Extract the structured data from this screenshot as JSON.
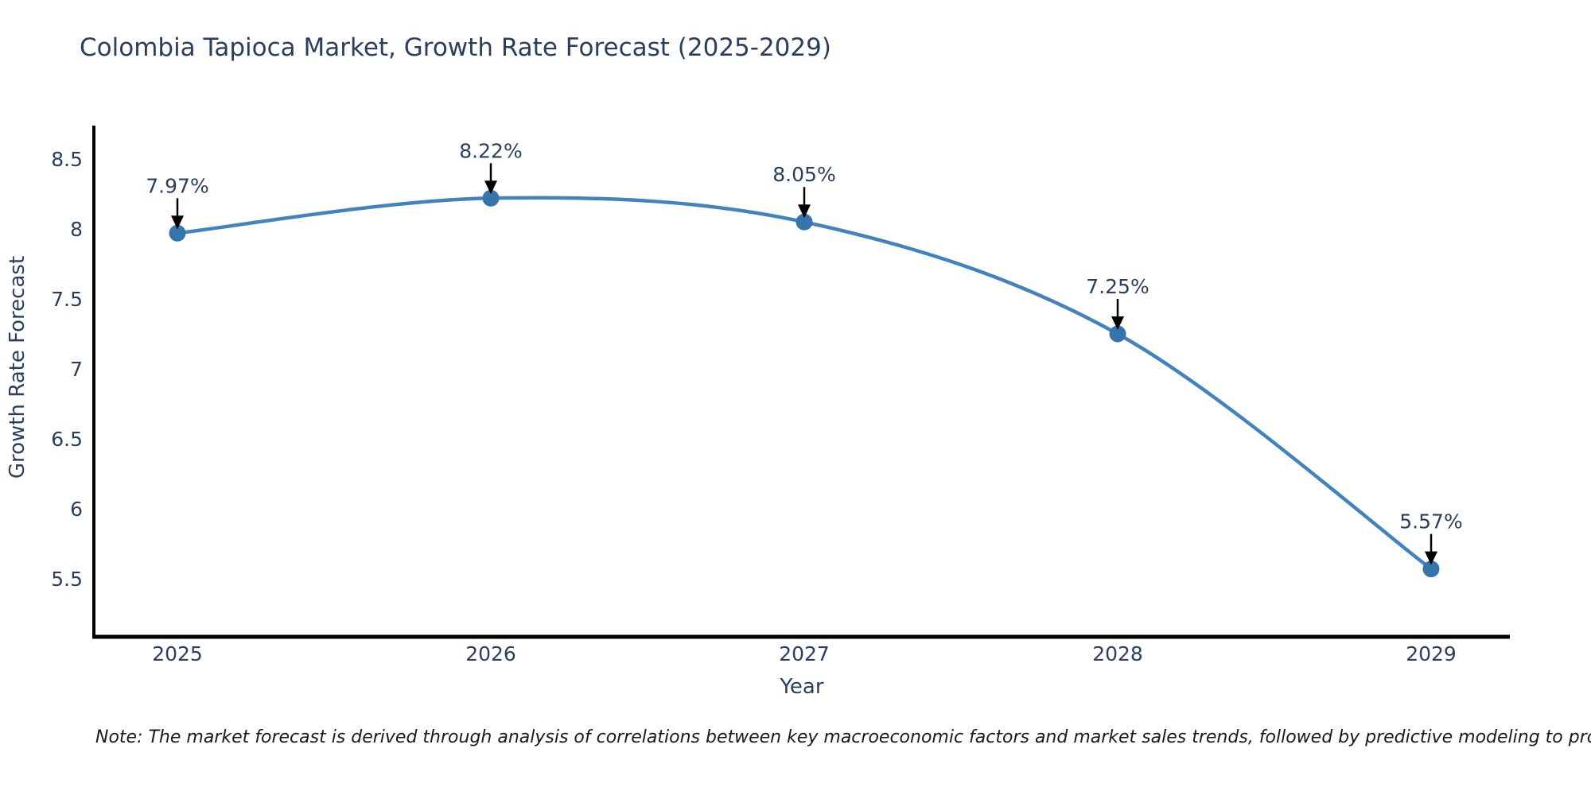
{
  "title": "Colombia Tapioca Market, Growth Rate Forecast (2025-2029)",
  "chart_data": {
    "type": "line",
    "title": "Colombia Tapioca Market, Growth Rate Forecast (2025-2029)",
    "xlabel": "Year",
    "ylabel": "Growth Rate Forecast",
    "x": [
      2025,
      2026,
      2027,
      2028,
      2029
    ],
    "values": [
      7.97,
      8.22,
      8.05,
      7.25,
      5.57
    ],
    "point_labels": [
      "7.97%",
      "8.22%",
      "8.05%",
      "7.25%",
      "5.57%"
    ],
    "x_tick_labels": [
      "2025",
      "2026",
      "2027",
      "2028",
      "2029"
    ],
    "y_ticks": [
      8.5,
      8,
      7.5,
      7,
      6.5,
      6,
      5.5
    ],
    "ylim": [
      5.08,
      8.73
    ],
    "xlim": [
      2024.73,
      2029.25
    ],
    "grid": false,
    "legend": false,
    "line_shape": "spline",
    "colors": {
      "line": "#4383bd",
      "marker": "#3674ae",
      "axis": "#000000",
      "labels": "#2a3f5f",
      "annotation_arrow": "#000000"
    }
  },
  "note": "Note: The market forecast is derived through analysis of correlations between key macroeconomic factors and market sales trends, followed by predictive modeling to project future sales"
}
